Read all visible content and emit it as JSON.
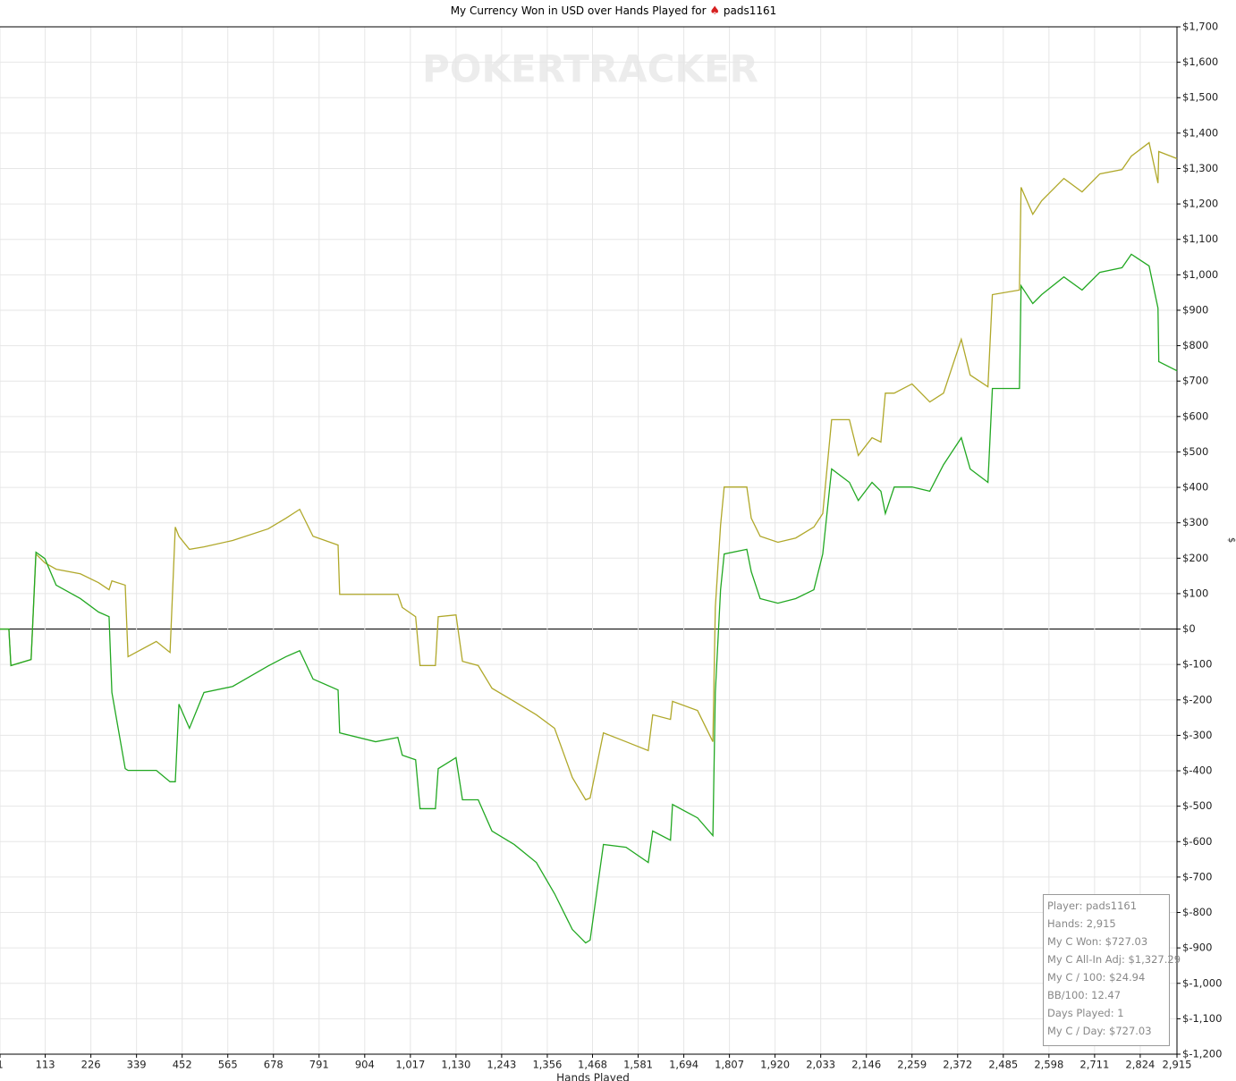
{
  "chart_data": {
    "type": "line",
    "title": "My Currency Won in USD over Hands Played for",
    "player": "pads1161",
    "watermark": "POKERTRACKER",
    "x_label": "Hands Played",
    "y_label": "$",
    "grid": true,
    "xlim": [
      1,
      2915
    ],
    "ylim": [
      -1200,
      1700
    ],
    "xticks": [
      1,
      113,
      226,
      339,
      452,
      565,
      678,
      791,
      904,
      {
        "value": 1017,
        "label": "1,017"
      },
      {
        "value": 1130,
        "label": "1,130"
      },
      {
        "value": 1243,
        "label": "1,243"
      },
      {
        "value": 1356,
        "label": "1,356"
      },
      {
        "value": 1468,
        "label": "1,468"
      },
      {
        "value": 1581,
        "label": "1,581"
      },
      {
        "value": 1694,
        "label": "1,694"
      },
      {
        "value": 1807,
        "label": "1,807"
      },
      {
        "value": 1920,
        "label": "1,920"
      },
      {
        "value": 2033,
        "label": "2,033"
      },
      {
        "value": 2146,
        "label": "2,146"
      },
      {
        "value": 2259,
        "label": "2,259"
      },
      {
        "value": 2372,
        "label": "2,372"
      },
      {
        "value": 2485,
        "label": "2,485"
      },
      {
        "value": 2598,
        "label": "2,598"
      },
      {
        "value": 2711,
        "label": "2,711"
      },
      {
        "value": 2824,
        "label": "2,824"
      },
      {
        "value": 2915,
        "label": "2,915"
      }
    ],
    "yticks": [
      {
        "value": -1200,
        "label": "$-1,200"
      },
      {
        "value": -1100,
        "label": "$-1,100"
      },
      {
        "value": -1000,
        "label": "$-1,000"
      },
      {
        "value": -900,
        "label": "$-900"
      },
      {
        "value": -800,
        "label": "$-800"
      },
      {
        "value": -700,
        "label": "$-700"
      },
      {
        "value": -600,
        "label": "$-600"
      },
      {
        "value": -500,
        "label": "$-500"
      },
      {
        "value": -400,
        "label": "$-400"
      },
      {
        "value": -300,
        "label": "$-300"
      },
      {
        "value": -200,
        "label": "$-200"
      },
      {
        "value": -100,
        "label": "$-100"
      },
      {
        "value": 0,
        "label": "$0"
      },
      {
        "value": 100,
        "label": "$100"
      },
      {
        "value": 200,
        "label": "$200"
      },
      {
        "value": 300,
        "label": "$300"
      },
      {
        "value": 400,
        "label": "$400"
      },
      {
        "value": 500,
        "label": "$500"
      },
      {
        "value": 600,
        "label": "$600"
      },
      {
        "value": 700,
        "label": "$700"
      },
      {
        "value": 800,
        "label": "$800"
      },
      {
        "value": 900,
        "label": "$900"
      },
      {
        "value": 1000,
        "label": "$1,000"
      },
      {
        "value": 1100,
        "label": "$1,100"
      },
      {
        "value": 1200,
        "label": "$1,200"
      },
      {
        "value": 1300,
        "label": "$1,300"
      },
      {
        "value": 1400,
        "label": "$1,400"
      },
      {
        "value": 1500,
        "label": "$1,500"
      },
      {
        "value": 1600,
        "label": "$1,600"
      },
      {
        "value": 1700,
        "label": "$1,700"
      }
    ],
    "x": [
      1,
      23,
      28,
      78,
      90,
      112,
      140,
      200,
      245,
      271,
      278,
      311,
      318,
      388,
      422,
      435,
      444,
      470,
      506,
      577,
      665,
      709,
      743,
      776,
      838,
      842,
      931,
      986,
      997,
      1030,
      1041,
      1079,
      1086,
      1130,
      1146,
      1185,
      1219,
      1274,
      1329,
      1374,
      1418,
      1451,
      1462,
      1495,
      1551,
      1606,
      1617,
      1661,
      1666,
      1728,
      1766,
      1772,
      1785,
      1794,
      1850,
      1861,
      1883,
      1927,
      1971,
      2016,
      2038,
      2060,
      2104,
      2126,
      2160,
      2182,
      2193,
      2215,
      2259,
      2303,
      2337,
      2381,
      2403,
      2447,
      2458,
      2525,
      2529,
      2558,
      2580,
      2635,
      2680,
      2724,
      2779,
      2802,
      2846,
      2868,
      2870,
      2915
    ],
    "series": [
      {
        "color": "#b0a82a",
        "values": [
          0,
          0,
          -103,
          -86,
          212,
          187,
          169,
          156,
          131,
          111,
          136,
          124,
          -78,
          -35,
          -66,
          288,
          262,
          225,
          232,
          250,
          283,
          313,
          338,
          262,
          237,
          98,
          98,
          98,
          61,
          35,
          -103,
          -103,
          35,
          40,
          -91,
          -103,
          -167,
          -204,
          -242,
          -280,
          -419,
          -482,
          -477,
          -293,
          -318,
          -343,
          -242,
          -255,
          -204,
          -230,
          -318,
          61,
          293,
          401,
          401,
          313,
          262,
          245,
          257,
          288,
          326,
          591,
          591,
          490,
          540,
          528,
          666,
          666,
          692,
          641,
          666,
          818,
          717,
          684,
          944,
          957,
          1247,
          1171,
          1209,
          1272,
          1234,
          1285,
          1297,
          1335,
          1373,
          1259,
          1348,
          1328
        ]
      },
      {
        "color": "#22a822",
        "values": [
          0,
          0,
          -103,
          -86,
          217,
          199,
          124,
          86,
          48,
          35,
          -179,
          -394,
          -399,
          -399,
          -431,
          -431,
          -212,
          -280,
          -179,
          -162,
          -104,
          -78,
          -61,
          -141,
          -172,
          -293,
          -318,
          -306,
          -356,
          -369,
          -507,
          -507,
          -394,
          -363,
          -482,
          -482,
          -570,
          -608,
          -659,
          -747,
          -848,
          -886,
          -878,
          -608,
          -616,
          -659,
          -570,
          -596,
          -495,
          -533,
          -583,
          -179,
          111,
          212,
          225,
          162,
          86,
          73,
          86,
          111,
          212,
          452,
          414,
          363,
          414,
          389,
          326,
          401,
          401,
          389,
          464,
          540,
          452,
          414,
          679,
          679,
          969,
          919,
          944,
          994,
          957,
          1007,
          1020,
          1058,
          1025,
          906,
          755,
          729
        ]
      }
    ],
    "stats": [
      "Player: pads1161",
      "Hands: 2,915",
      "My C Won: $727.03",
      "My C All-In Adj: $1,327.29",
      "My C / 100: $24.94",
      "BB/100: 12.47",
      "Days Played: 1",
      "My C / Day: $727.03"
    ]
  }
}
